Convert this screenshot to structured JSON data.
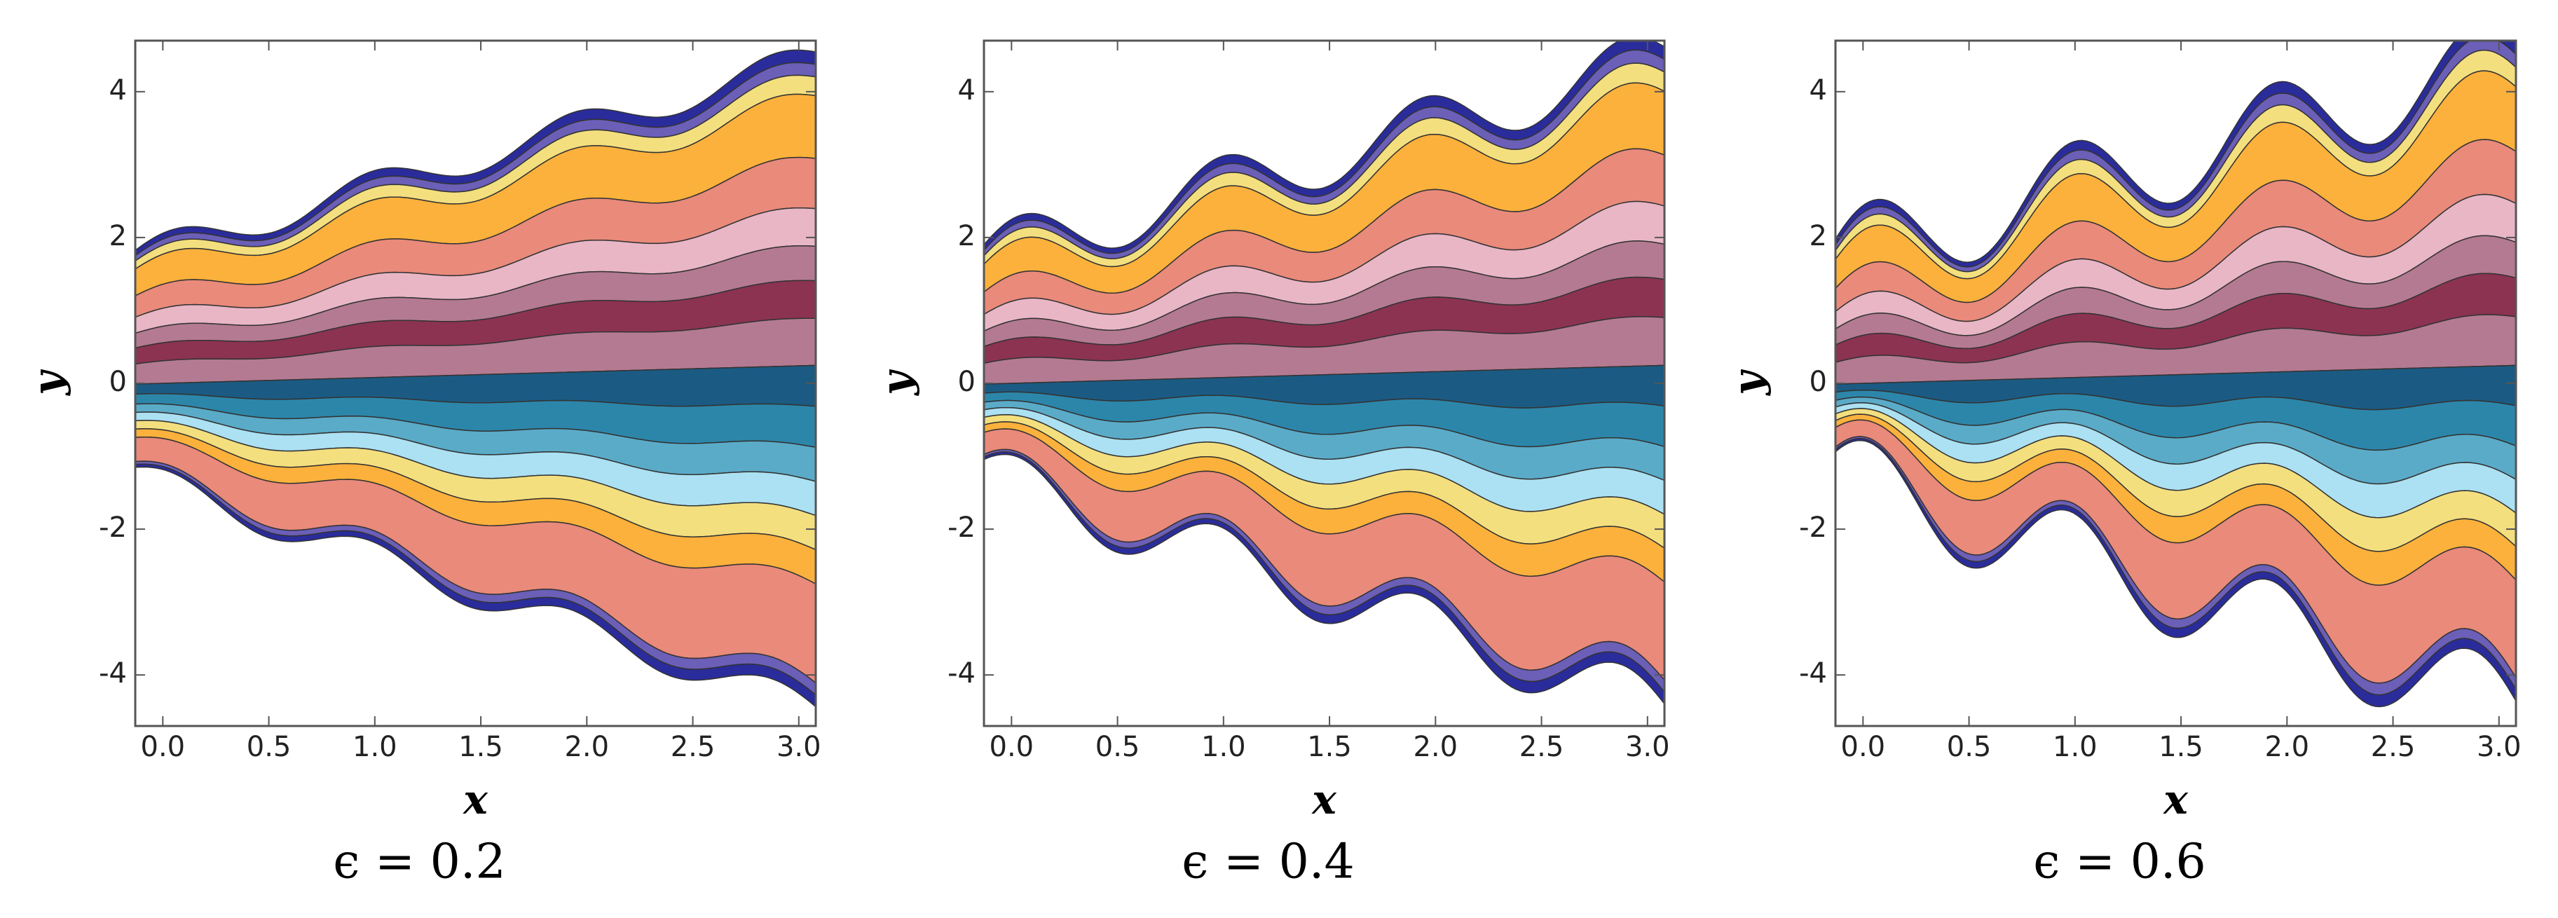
{
  "chart_data": [
    {
      "type": "contour",
      "xlabel": "x",
      "ylabel": "y",
      "caption": "ϵ = 0.2",
      "xlim": [
        -0.13,
        3.08
      ],
      "ylim": [
        -4.7,
        4.7
      ],
      "xticks": [
        {
          "value": 0,
          "label": "0.0"
        },
        0.5,
        {
          "value": 1,
          "label": "1.0"
        },
        1.5,
        {
          "value": 2,
          "label": "2.0"
        },
        2.5,
        {
          "value": 3,
          "label": "3.0"
        }
      ],
      "yticks": [
        -4,
        -2,
        0,
        2,
        4
      ]
    },
    {
      "type": "contour",
      "xlabel": "x",
      "ylabel": "y",
      "caption": "ϵ = 0.4",
      "xlim": [
        -0.13,
        3.08
      ],
      "ylim": [
        -4.7,
        4.7
      ],
      "xticks": [
        {
          "value": 0,
          "label": "0.0"
        },
        0.5,
        {
          "value": 1,
          "label": "1.0"
        },
        1.5,
        {
          "value": 2,
          "label": "2.0"
        },
        2.5,
        {
          "value": 3,
          "label": "3.0"
        }
      ],
      "yticks": [
        -4,
        -2,
        0,
        2,
        4
      ]
    },
    {
      "type": "contour",
      "xlabel": "x",
      "ylabel": "y",
      "caption": "ϵ = 0.6",
      "xlim": [
        -0.13,
        3.08
      ],
      "ylim": [
        -4.7,
        4.7
      ],
      "xticks": [
        {
          "value": 0,
          "label": "0.0"
        },
        0.5,
        {
          "value": 1,
          "label": "1.0"
        },
        1.5,
        {
          "value": 2,
          "label": "2.0"
        },
        2.5,
        {
          "value": 3,
          "label": "3.0"
        }
      ],
      "yticks": [
        -4,
        -2,
        0,
        2,
        4
      ]
    }
  ]
}
